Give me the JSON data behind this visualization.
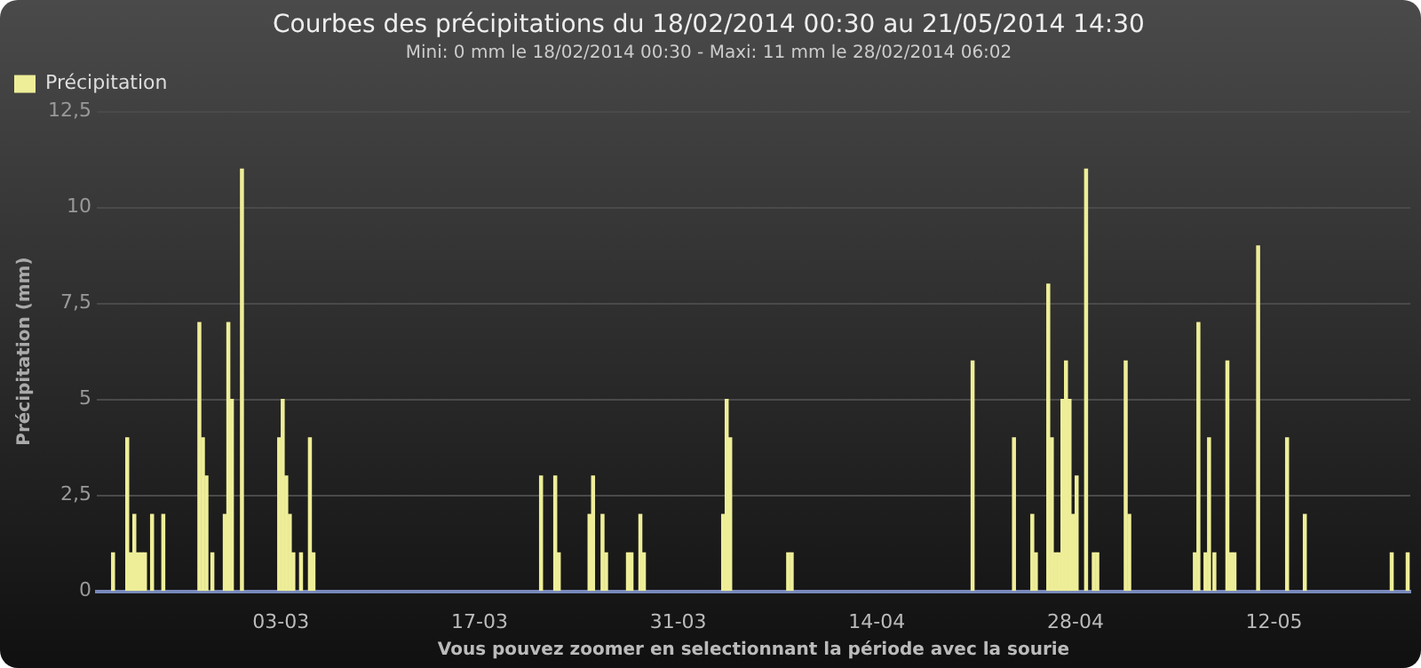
{
  "chart_data": {
    "type": "bar",
    "title": "Courbes des précipitations du 18/02/2014 00:30 au 21/05/2014 14:30",
    "subtitle": "Mini: 0 mm le 18/02/2014 00:30 - Maxi: 11 mm le 28/02/2014 06:02",
    "xlabel": "Vous pouvez zoomer en selectionnant la période avec la sourie",
    "ylabel": "Précipitation (mm)",
    "x": [
      "2014-02-19T04:00",
      "2014-02-20T04:00",
      "2014-02-20T10:00",
      "2014-02-20T16:00",
      "2014-02-20T22:00",
      "2014-02-21T04:00",
      "2014-02-21T10:00",
      "2014-02-21T22:00",
      "2014-02-22T17:00",
      "2014-02-25T06:00",
      "2014-02-25T12:00",
      "2014-02-25T18:00",
      "2014-02-26T04:00",
      "2014-02-27T01:00",
      "2014-02-27T07:00",
      "2014-02-27T13:00",
      "2014-02-28T06:02",
      "2014-03-02T21:00",
      "2014-03-03T03:00",
      "2014-03-03T09:00",
      "2014-03-03T15:00",
      "2014-03-03T21:00",
      "2014-03-04T10:00",
      "2014-03-05T01:00",
      "2014-03-05T07:00",
      "2014-03-21T08:00",
      "2014-03-22T08:00",
      "2014-03-22T14:00",
      "2014-03-24T18:00",
      "2014-03-25T00:00",
      "2014-03-25T16:00",
      "2014-03-25T22:00",
      "2014-03-27T11:00",
      "2014-03-27T17:00",
      "2014-03-28T08:00",
      "2014-03-28T14:00",
      "2014-04-03T04:00",
      "2014-04-03T10:00",
      "2014-04-03T16:00",
      "2014-04-07T18:00",
      "2014-04-08T00:00",
      "2014-04-20T18:00",
      "2014-04-23T16:00",
      "2014-04-24T23:00",
      "2014-04-25T05:00",
      "2014-04-26T02:00",
      "2014-04-26T08:00",
      "2014-04-26T14:00",
      "2014-04-26T20:00",
      "2014-04-27T02:00",
      "2014-04-27T08:00",
      "2014-04-27T14:00",
      "2014-04-27T20:00",
      "2014-04-28T02:00",
      "2014-04-28T18:00",
      "2014-04-29T07:00",
      "2014-04-29T13:00",
      "2014-05-01T13:00",
      "2014-05-01T19:00",
      "2014-05-06T10:00",
      "2014-05-06T16:00",
      "2014-05-07T04:00",
      "2014-05-07T10:00",
      "2014-05-07T19:00",
      "2014-05-08T17:00",
      "2014-05-08T23:00",
      "2014-05-09T05:00",
      "2014-05-10T21:00",
      "2014-05-12T22:00",
      "2014-05-14T04:00",
      "2014-05-20T07:00",
      "2014-05-21T10:00"
    ],
    "series": [
      {
        "name": "Précipitation",
        "color": "#eeee99",
        "values": [
          1,
          4,
          1,
          2,
          1,
          1,
          1,
          2,
          2,
          7,
          4,
          3,
          1,
          2,
          7,
          5,
          11,
          4,
          5,
          3,
          2,
          1,
          1,
          4,
          1,
          3,
          3,
          1,
          2,
          3,
          2,
          1,
          1,
          1,
          2,
          1,
          2,
          5,
          4,
          1,
          1,
          6,
          4,
          2,
          1,
          8,
          4,
          1,
          1,
          5,
          6,
          5,
          2,
          3,
          11,
          1,
          1,
          6,
          2,
          1,
          7,
          1,
          4,
          1,
          6,
          1,
          1,
          9,
          4,
          2,
          1,
          1
        ]
      }
    ],
    "xlim": [
      "2014-02-18T00:30",
      "2014-05-21T14:30"
    ],
    "xticks": [
      {
        "value": "2014-03-03",
        "label": "03-03"
      },
      {
        "value": "2014-03-17",
        "label": "17-03"
      },
      {
        "value": "2014-03-31",
        "label": "31-03"
      },
      {
        "value": "2014-04-14",
        "label": "14-04"
      },
      {
        "value": "2014-04-28",
        "label": "28-04"
      },
      {
        "value": "2014-05-12",
        "label": "12-05"
      }
    ],
    "ylim": [
      0,
      12.5
    ],
    "yticks": [
      0,
      {
        "value": 2.5,
        "label": "2,5"
      },
      5,
      {
        "value": 7.5,
        "label": "7,5"
      },
      10,
      {
        "value": 12.5,
        "label": "12,5"
      }
    ],
    "grid": "y",
    "legend": "top left"
  }
}
